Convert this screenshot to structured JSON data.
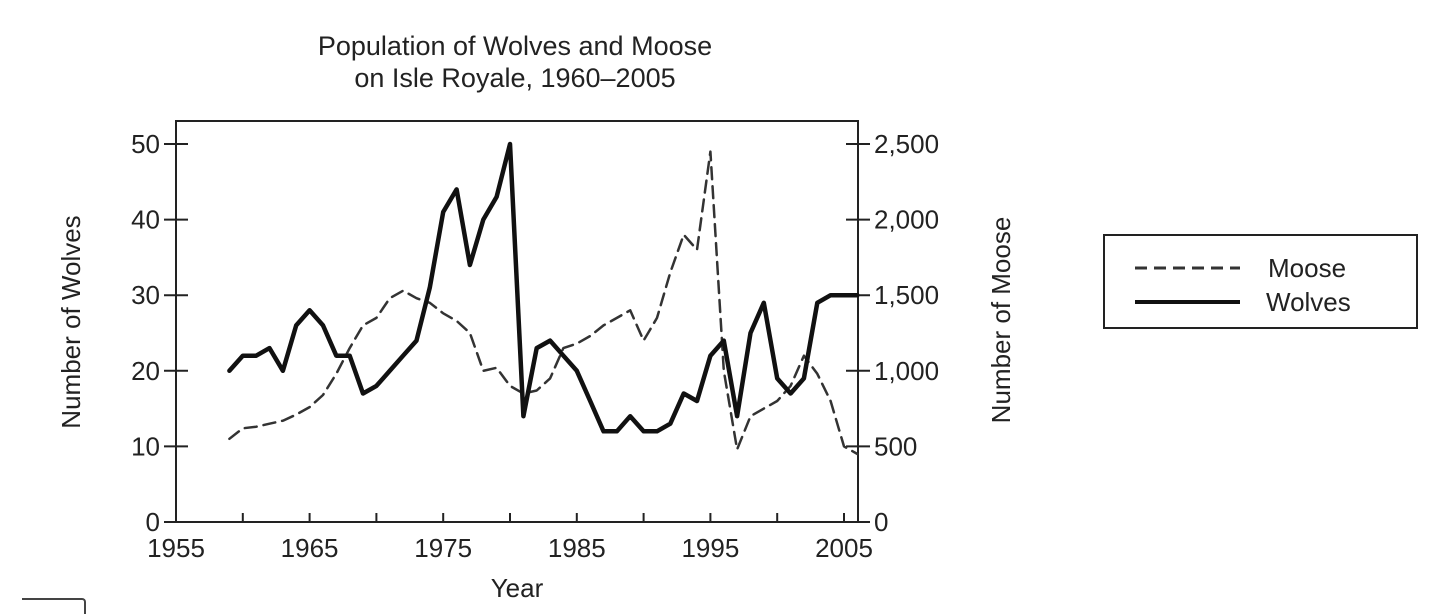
{
  "chart_data": {
    "type": "line",
    "title": [
      "Population of Wolves and Moose",
      "on Isle Royale, 1960–2005"
    ],
    "xlabel": "Year",
    "ylabel_left": "Number of Wolves",
    "ylabel_right": "Number of Moose",
    "xlim": [
      1955,
      2006
    ],
    "ylim_left": [
      0,
      50
    ],
    "ylim_right": [
      0,
      2500
    ],
    "x_ticks": [
      1955,
      1965,
      1975,
      1985,
      1995,
      2005
    ],
    "y_ticks_left": [
      0,
      10,
      20,
      30,
      40,
      50
    ],
    "y_ticks_right": [
      0,
      500,
      1000,
      1500,
      2000,
      2500
    ],
    "x_tick_labels": [
      "1955",
      "1965",
      "1975",
      "1985",
      "1995",
      "2005"
    ],
    "y_tick_labels_left": [
      "0",
      "10",
      "20",
      "30",
      "40",
      "50"
    ],
    "y_tick_labels_right": [
      "0",
      "500",
      "1,000",
      "1,500",
      "2,000",
      "2,500"
    ],
    "grid": false,
    "legend_position": "right",
    "series": [
      {
        "name": "Moose",
        "axis": "right",
        "style": "dashed",
        "color": "#333333",
        "x": [
          1959,
          1960,
          1961,
          1962,
          1963,
          1964,
          1965,
          1966,
          1967,
          1968,
          1969,
          1970,
          1971,
          1972,
          1973,
          1974,
          1975,
          1976,
          1977,
          1978,
          1979,
          1980,
          1981,
          1982,
          1983,
          1984,
          1985,
          1986,
          1987,
          1988,
          1989,
          1990,
          1991,
          1992,
          1993,
          1994,
          1995,
          1996,
          1997,
          1998,
          1999,
          2000,
          2001,
          2002,
          2003,
          2004,
          2005,
          2006
        ],
        "values": [
          550,
          620,
          630,
          650,
          670,
          710,
          760,
          840,
          980,
          1150,
          1300,
          1350,
          1480,
          1530,
          1480,
          1450,
          1380,
          1330,
          1250,
          1000,
          1020,
          900,
          850,
          870,
          950,
          1150,
          1180,
          1230,
          1300,
          1350,
          1400,
          1200,
          1350,
          1650,
          1900,
          1800,
          2450,
          1000,
          480,
          700,
          750,
          800,
          900,
          1100,
          980,
          800,
          500,
          450
        ]
      },
      {
        "name": "Wolves",
        "axis": "left",
        "style": "solid",
        "color": "#111111",
        "x": [
          1959,
          1960,
          1961,
          1962,
          1963,
          1964,
          1965,
          1966,
          1967,
          1968,
          1969,
          1970,
          1971,
          1972,
          1973,
          1974,
          1975,
          1976,
          1977,
          1978,
          1979,
          1980,
          1981,
          1982,
          1983,
          1984,
          1985,
          1986,
          1987,
          1988,
          1989,
          1990,
          1991,
          1992,
          1993,
          1994,
          1995,
          1996,
          1997,
          1998,
          1999,
          2000,
          2001,
          2002,
          2003,
          2004,
          2005,
          2006
        ],
        "values": [
          20,
          22,
          22,
          23,
          20,
          26,
          28,
          26,
          22,
          22,
          17,
          18,
          20,
          22,
          24,
          31,
          41,
          44,
          34,
          40,
          43,
          50,
          14,
          23,
          24,
          22,
          20,
          16,
          12,
          12,
          14,
          12,
          12,
          13,
          17,
          16,
          22,
          24,
          14,
          25,
          29,
          19,
          17,
          19,
          29,
          30,
          30,
          30
        ]
      }
    ]
  }
}
